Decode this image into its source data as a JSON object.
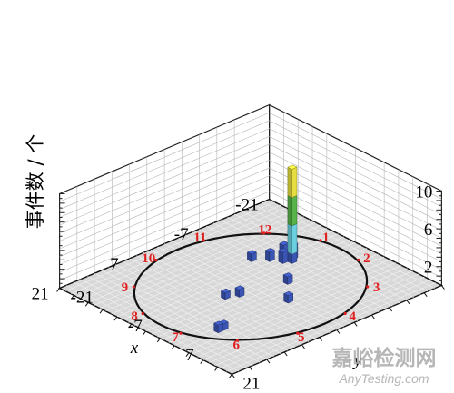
{
  "chart_data": {
    "type": "bar3d",
    "ylabel": "事件数 / 个",
    "xlabel": "x",
    "y_axis_label": "y",
    "xlim": [
      -21,
      21
    ],
    "ylim": [
      -21,
      21
    ],
    "zlim": [
      0,
      10
    ],
    "x_ticks": [
      "-21",
      "-7",
      "7",
      "21"
    ],
    "y_ticks": [
      "-21",
      "-7",
      "7",
      "21"
    ],
    "z_ticks": [
      "2",
      "6",
      "10"
    ],
    "circle_radius": 18,
    "clock_labels": [
      "1",
      "2",
      "3",
      "4",
      "5",
      "6",
      "7",
      "8",
      "9",
      "10",
      "11",
      "12"
    ],
    "bars": [
      {
        "x": -10,
        "y": -2,
        "value": 10,
        "segments": [
          {
            "upto": 1,
            "color": "#3a55b4"
          },
          {
            "upto": 4,
            "color": "#6ad0e0"
          },
          {
            "upto": 7,
            "color": "#58b34a"
          },
          {
            "upto": 10,
            "color": "#e6de40"
          }
        ]
      },
      {
        "x": -11,
        "y": -3,
        "value": 1.5
      },
      {
        "x": -10,
        "y": -4,
        "value": 1.5
      },
      {
        "x": -9,
        "y": -3,
        "value": 1.2
      },
      {
        "x": -8,
        "y": -5,
        "value": 1
      },
      {
        "x": -6,
        "y": -7,
        "value": 0.8
      },
      {
        "x": -5,
        "y": 3,
        "value": 0.8
      },
      {
        "x": 3,
        "y": 1,
        "value": 0.8
      },
      {
        "x": -1,
        "y": 8,
        "value": 0.8
      },
      {
        "x": 5,
        "y": 0,
        "value": 0.7
      },
      {
        "x": 12,
        "y": 8,
        "value": 0.7
      },
      {
        "x": 13,
        "y": 8,
        "value": 0.8
      }
    ],
    "colors": {
      "bar": "#3a55b4",
      "clock_label": "#e02020",
      "circle": "#111111",
      "floor": "#d8d8d8",
      "grid": "#b5b5b5"
    }
  },
  "watermark": {
    "cn": "嘉峪检测网",
    "en": "AnyTesting.com"
  }
}
